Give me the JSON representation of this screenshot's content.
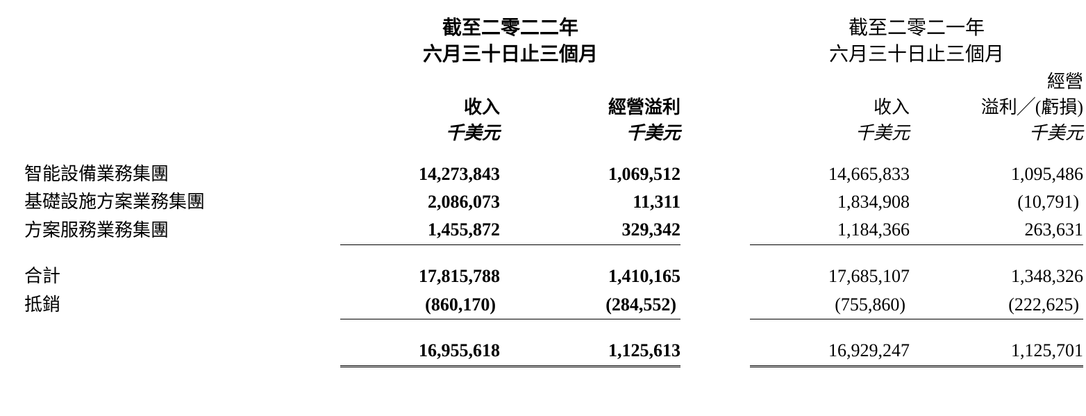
{
  "periods": {
    "p2022": {
      "line1": "截至二零二二年",
      "line2": "六月三十日止三個月"
    },
    "p2021": {
      "line1": "截至二零二一年",
      "line2": "六月三十日止三個月"
    }
  },
  "col_headers": {
    "revenue": "收入",
    "op_profit": "經營溢利",
    "op_profit_loss_l1": "經營",
    "op_profit_loss_l2": "溢利╱(虧損)"
  },
  "unit": "千美元",
  "rows": {
    "r1": {
      "label": "智能設備業務集團",
      "v2022_rev": "14,273,843",
      "v2022_op": "1,069,512",
      "v2021_rev": "14,665,833",
      "v2021_op": "1,095,486"
    },
    "r2": {
      "label": "基礎設施方案業務集團",
      "v2022_rev": "2,086,073",
      "v2022_op": "11,311",
      "v2021_rev": "1,834,908",
      "v2021_op": "(10,791)"
    },
    "r3": {
      "label": "方案服務業務集團",
      "v2022_rev": "1,455,872",
      "v2022_op": "329,342",
      "v2021_rev": "1,184,366",
      "v2021_op": "263,631"
    },
    "subtotal": {
      "label": "合計",
      "v2022_rev": "17,815,788",
      "v2022_op": "1,410,165",
      "v2021_rev": "17,685,107",
      "v2021_op": "1,348,326"
    },
    "elim": {
      "label": "抵銷",
      "v2022_rev": "(860,170)",
      "v2022_op": "(284,552)",
      "v2021_rev": "(755,860)",
      "v2021_op": "(222,625)"
    },
    "total": {
      "v2022_rev": "16,955,618",
      "v2022_op": "1,125,613",
      "v2021_rev": "16,929,247",
      "v2021_op": "1,125,701"
    }
  },
  "style": {
    "font_size_body": 26,
    "font_size_header": 28,
    "text_color": "#000000",
    "background_color": "#ffffff",
    "bold_group": "2022"
  }
}
